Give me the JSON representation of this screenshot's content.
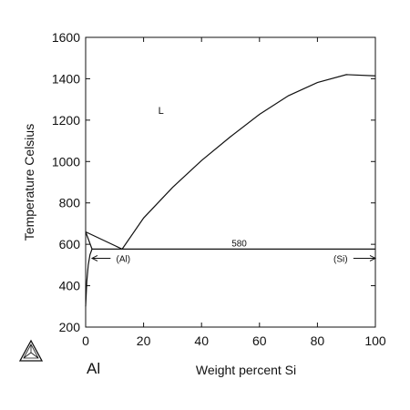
{
  "chart_data": {
    "type": "line",
    "title": "",
    "xlabel": "Weight percent Si",
    "ylabel": "Temperature Celsius",
    "xlim": [
      0,
      100
    ],
    "ylim": [
      200,
      1600
    ],
    "x_ticks": [
      0,
      20,
      40,
      60,
      80,
      100
    ],
    "y_ticks": [
      200,
      400,
      600,
      800,
      1000,
      1200,
      1400,
      1600
    ],
    "grid": false,
    "series": [
      {
        "x": [
          0,
          12.6
        ],
        "y": [
          660,
          577
        ]
      },
      {
        "x": [
          12.6,
          20,
          30,
          40,
          50,
          60,
          70,
          80,
          90,
          100
        ],
        "y": [
          577,
          727,
          875,
          1005,
          1120,
          1228,
          1318,
          1382,
          1420,
          1414
        ]
      },
      {
        "x": [
          2.2,
          100
        ],
        "y": [
          577,
          577
        ]
      },
      {
        "x": [
          0,
          2.2
        ],
        "y": [
          660,
          577
        ]
      },
      {
        "x": [
          0,
          0.4,
          0.9,
          1.5,
          2.2
        ],
        "y": [
          300,
          420,
          500,
          550,
          577
        ]
      }
    ],
    "annotations": [
      {
        "text": "L",
        "x": 26,
        "y": 1230
      },
      {
        "text": "580",
        "x": 53,
        "y": 590
      },
      {
        "text": "(Al)",
        "x": 13,
        "y": 515,
        "arrow_to_x": 2.2
      },
      {
        "text": "(Si)",
        "x": 88,
        "y": 515,
        "arrow_to_x": 100
      }
    ],
    "element_labels": {
      "left": "Al"
    }
  }
}
